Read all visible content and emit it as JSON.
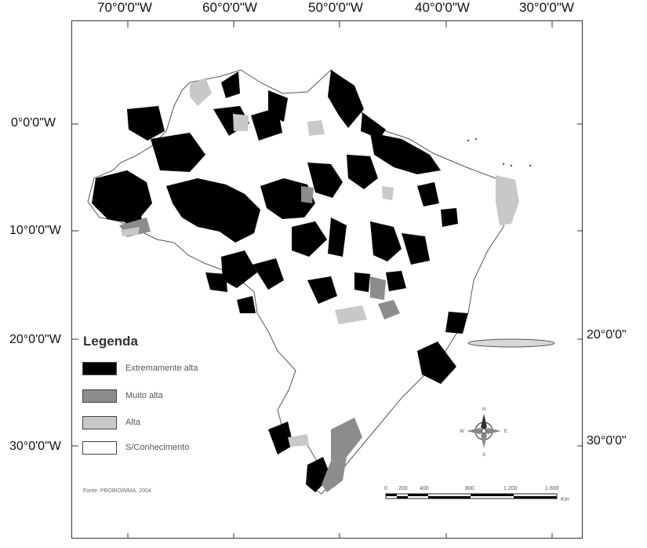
{
  "axes": {
    "top_ticks": [
      "70°0'0\"W",
      "60°0'0\"W",
      "50°0'0\"W",
      "40°0'0\"W",
      "30°0'0\"W"
    ],
    "left_ticks": [
      "0°0'0\"W",
      "10°0'0\"W",
      "20°0'0\"W",
      "30°0'0\"W"
    ],
    "right_ticks": [
      "20°0'0\"",
      "30°0'0\""
    ]
  },
  "legend": {
    "title": "Legenda",
    "items": [
      {
        "label": "Extremamente alta",
        "color": "#000000"
      },
      {
        "label": "Muito alta",
        "color": "#8c8c8c"
      },
      {
        "label": "Alta",
        "color": "#c8c8c8"
      },
      {
        "label": "S/Conhecimento",
        "color": "#ffffff"
      }
    ]
  },
  "source": "Fonte: PROBIO/MMA, 2004",
  "scale_bar": {
    "labels": [
      "0",
      "200",
      "400",
      "800",
      "1.200",
      "1.600"
    ],
    "unit": "Km"
  },
  "north_arrow": {
    "icon": "compass-rose-icon",
    "letters": [
      "N",
      "S",
      "E",
      "W"
    ]
  },
  "colors": {
    "extremamente_alta": "#000000",
    "muito_alta": "#8c8c8c",
    "alta": "#c8c8c8",
    "land_outline": "#555555"
  }
}
